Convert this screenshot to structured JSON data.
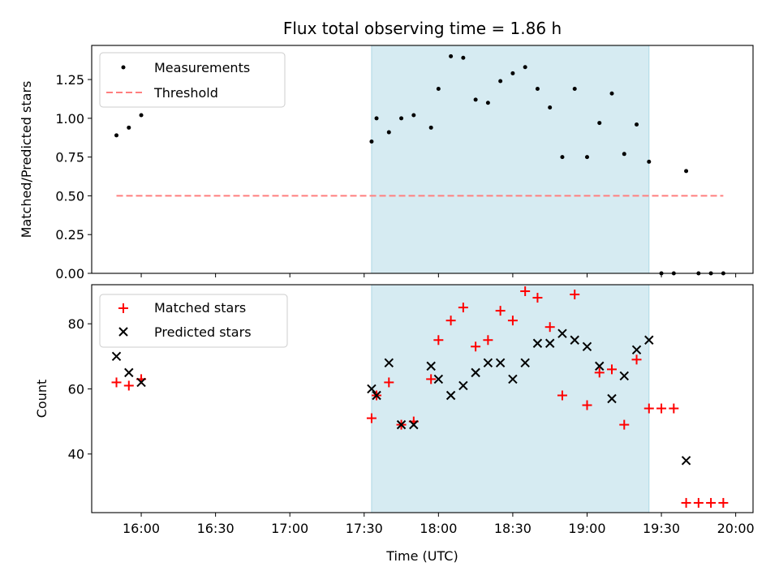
{
  "title": "Flux total observing time = 1.86 h",
  "colors": {
    "measurements": "#000000",
    "threshold": "#ff7f7f",
    "matched": "#ff0000",
    "predicted": "#000000",
    "shade": "#add8e6"
  },
  "chart_data": [
    {
      "type": "scatter",
      "ylabel": "Matched/Predicted stars",
      "xlabel": "",
      "ylim": [
        0,
        1.47
      ],
      "yticks": [
        "0.00",
        "0.25",
        "0.50",
        "0.75",
        "1.00",
        "1.25"
      ],
      "ytick_values": [
        0,
        0.25,
        0.5,
        0.75,
        1.0,
        1.25
      ],
      "shaded_span": [
        "17:33",
        "19:25"
      ],
      "legend": {
        "placement": "upper-left",
        "entries": [
          "Measurements",
          "Threshold"
        ]
      },
      "series": [
        {
          "name": "Measurements",
          "marker": "dot",
          "points": [
            [
              "15:50",
              0.89
            ],
            [
              "15:55",
              0.94
            ],
            [
              "16:00",
              1.02
            ],
            [
              "17:33",
              0.85
            ],
            [
              "17:35",
              1.0
            ],
            [
              "17:40",
              0.91
            ],
            [
              "17:45",
              1.0
            ],
            [
              "17:50",
              1.02
            ],
            [
              "17:57",
              0.94
            ],
            [
              "18:00",
              1.19
            ],
            [
              "18:05",
              1.4
            ],
            [
              "18:10",
              1.39
            ],
            [
              "18:15",
              1.12
            ],
            [
              "18:20",
              1.1
            ],
            [
              "18:25",
              1.24
            ],
            [
              "18:30",
              1.29
            ],
            [
              "18:35",
              1.33
            ],
            [
              "18:40",
              1.19
            ],
            [
              "18:45",
              1.07
            ],
            [
              "18:50",
              0.75
            ],
            [
              "18:55",
              1.19
            ],
            [
              "19:00",
              0.75
            ],
            [
              "19:05",
              0.97
            ],
            [
              "19:10",
              1.16
            ],
            [
              "19:15",
              0.77
            ],
            [
              "19:20",
              0.96
            ],
            [
              "19:25",
              0.72
            ],
            [
              "19:30",
              0.0
            ],
            [
              "19:35",
              0.0
            ],
            [
              "19:40",
              0.66
            ],
            [
              "19:45",
              0.0
            ],
            [
              "19:50",
              0.0
            ],
            [
              "19:55",
              0.0
            ]
          ]
        },
        {
          "name": "Threshold",
          "marker": "dashed-line",
          "points": [
            [
              "15:50",
              0.5
            ],
            [
              "19:55",
              0.5
            ]
          ]
        }
      ]
    },
    {
      "type": "scatter",
      "ylabel": "Count",
      "xlabel": "Time (UTC)",
      "ylim": [
        22,
        92
      ],
      "yticks": [
        "40",
        "60",
        "80"
      ],
      "ytick_values": [
        40,
        60,
        80
      ],
      "xlim": [
        "15:40",
        "20:07"
      ],
      "xticks": [
        "16:00",
        "16:30",
        "17:00",
        "17:30",
        "18:00",
        "18:30",
        "19:00",
        "19:30",
        "20:00"
      ],
      "shaded_span": [
        "17:33",
        "19:25"
      ],
      "legend": {
        "placement": "upper-left",
        "entries": [
          "Matched stars",
          "Predicted stars"
        ]
      },
      "series": [
        {
          "name": "Matched stars",
          "marker": "plus",
          "points": [
            [
              "15:50",
              62
            ],
            [
              "15:55",
              61
            ],
            [
              "16:00",
              63
            ],
            [
              "17:33",
              51
            ],
            [
              "17:35",
              58
            ],
            [
              "17:40",
              62
            ],
            [
              "17:45",
              49
            ],
            [
              "17:50",
              50
            ],
            [
              "17:57",
              63
            ],
            [
              "18:00",
              75
            ],
            [
              "18:05",
              81
            ],
            [
              "18:10",
              85
            ],
            [
              "18:15",
              73
            ],
            [
              "18:20",
              75
            ],
            [
              "18:25",
              84
            ],
            [
              "18:30",
              81
            ],
            [
              "18:35",
              90
            ],
            [
              "18:40",
              88
            ],
            [
              "18:45",
              79
            ],
            [
              "18:50",
              58
            ],
            [
              "18:55",
              89
            ],
            [
              "19:00",
              55
            ],
            [
              "19:05",
              65
            ],
            [
              "19:10",
              66
            ],
            [
              "19:15",
              49
            ],
            [
              "19:20",
              69
            ],
            [
              "19:25",
              54
            ],
            [
              "19:30",
              54
            ],
            [
              "19:35",
              54
            ],
            [
              "19:40",
              25
            ],
            [
              "19:45",
              25
            ],
            [
              "19:50",
              25
            ],
            [
              "19:55",
              25
            ]
          ]
        },
        {
          "name": "Predicted stars",
          "marker": "x",
          "points": [
            [
              "15:50",
              70
            ],
            [
              "15:55",
              65
            ],
            [
              "16:00",
              62
            ],
            [
              "17:33",
              60
            ],
            [
              "17:35",
              58
            ],
            [
              "17:40",
              68
            ],
            [
              "17:45",
              49
            ],
            [
              "17:50",
              49
            ],
            [
              "17:57",
              67
            ],
            [
              "18:00",
              63
            ],
            [
              "18:05",
              58
            ],
            [
              "18:10",
              61
            ],
            [
              "18:15",
              65
            ],
            [
              "18:20",
              68
            ],
            [
              "18:25",
              68
            ],
            [
              "18:30",
              63
            ],
            [
              "18:35",
              68
            ],
            [
              "18:40",
              74
            ],
            [
              "18:45",
              74
            ],
            [
              "18:50",
              77
            ],
            [
              "18:55",
              75
            ],
            [
              "19:00",
              73
            ],
            [
              "19:05",
              67
            ],
            [
              "19:10",
              57
            ],
            [
              "19:15",
              64
            ],
            [
              "19:20",
              72
            ],
            [
              "19:25",
              75
            ],
            [
              "19:40",
              38
            ]
          ]
        }
      ]
    }
  ]
}
